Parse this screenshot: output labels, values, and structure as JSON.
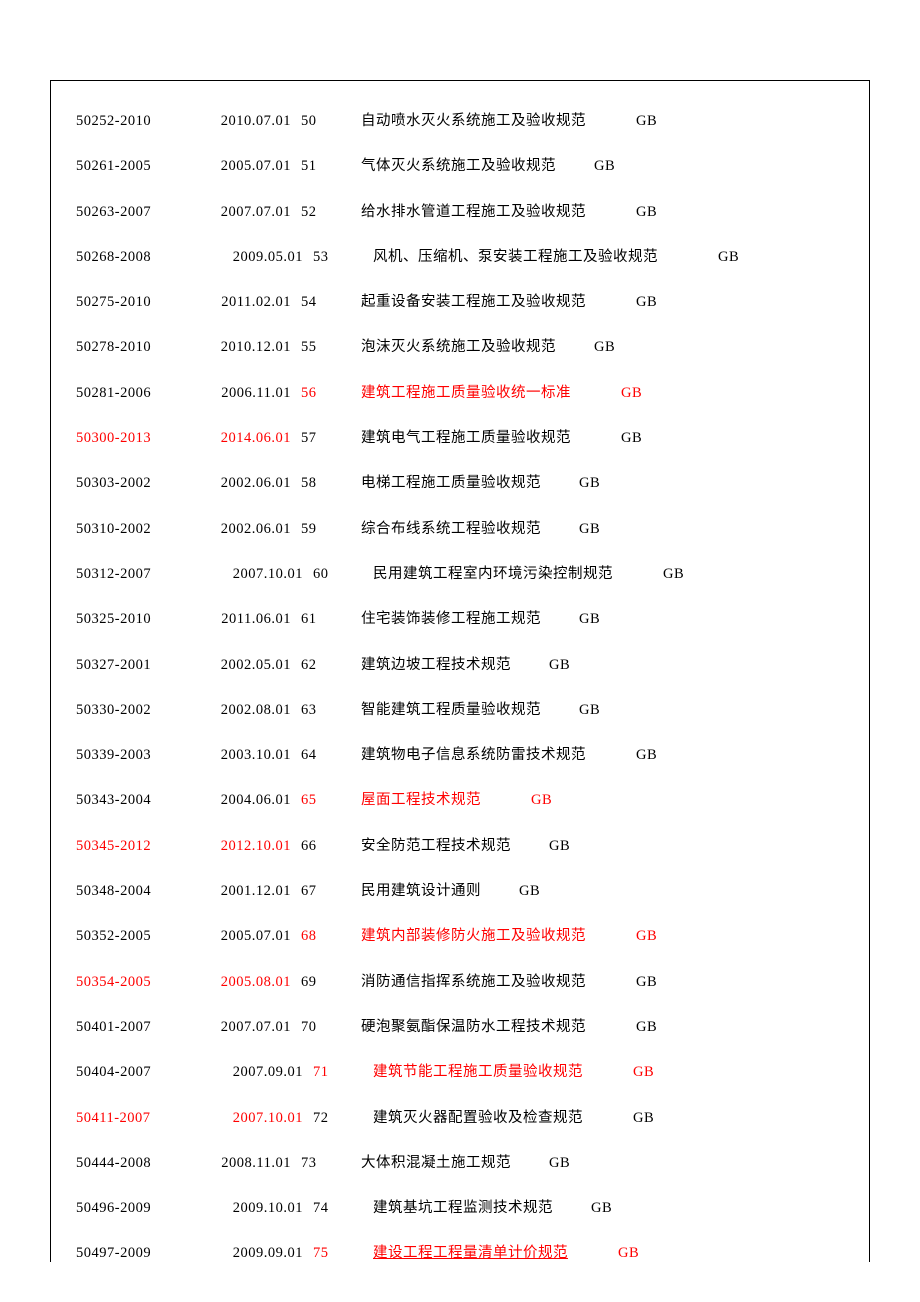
{
  "entries": [
    {
      "code": "50252-2010",
      "date": "2010.07.01",
      "seq": "50",
      "title": "自动喷水灭火系统施工及验收规范",
      "gb": "GB",
      "codeColor": "#000",
      "dateColor": "#000",
      "seqColor": "#000",
      "titleColor": "#000",
      "gbColor": "#000",
      "titleUnderline": false,
      "gbMargin": 50,
      "indentDate": false
    },
    {
      "code": "50261-2005",
      "date": "2005.07.01",
      "seq": "51",
      "title": "气体灭火系统施工及验收规范",
      "gb": "GB",
      "codeColor": "#000",
      "dateColor": "#000",
      "seqColor": "#000",
      "titleColor": "#000",
      "gbColor": "#000",
      "titleUnderline": false,
      "gbMargin": 38,
      "indentDate": false
    },
    {
      "code": "50263-2007",
      "date": "2007.07.01",
      "seq": "52",
      "title": "给水排水管道工程施工及验收规范",
      "gb": "GB",
      "codeColor": "#000",
      "dateColor": "#000",
      "seqColor": "#000",
      "titleColor": "#000",
      "gbColor": "#000",
      "titleUnderline": false,
      "gbMargin": 50,
      "indentDate": false
    },
    {
      "code": "50268-2008",
      "date": "2009.05.01",
      "seq": "53",
      "title": "风机、压缩机、泵安装工程施工及验收规范",
      "gb": "GB",
      "codeColor": "#000",
      "dateColor": "#000",
      "seqColor": "#000",
      "titleColor": "#000",
      "gbColor": "#000",
      "titleUnderline": false,
      "gbMargin": 60,
      "indentDate": true
    },
    {
      "code": "50275-2010",
      "date": "2011.02.01",
      "seq": "54",
      "title": "起重设备安装工程施工及验收规范",
      "gb": "GB",
      "codeColor": "#000",
      "dateColor": "#000",
      "seqColor": "#000",
      "titleColor": "#000",
      "gbColor": "#000",
      "titleUnderline": false,
      "gbMargin": 50,
      "indentDate": false
    },
    {
      "code": "50278-2010",
      "date": "2010.12.01",
      "seq": "55",
      "title": "泡沫灭火系统施工及验收规范",
      "gb": "GB",
      "codeColor": "#000",
      "dateColor": "#000",
      "seqColor": "#000",
      "titleColor": "#000",
      "gbColor": "#000",
      "titleUnderline": false,
      "gbMargin": 38,
      "indentDate": false
    },
    {
      "code": "50281-2006",
      "date": "2006.11.01",
      "seq": "56",
      "title": "建筑工程施工质量验收统一标准",
      "gb": "GB",
      "codeColor": "#000",
      "dateColor": "#000",
      "seqColor": "#ff0000",
      "titleColor": "#ff0000",
      "gbColor": "#ff0000",
      "titleUnderline": false,
      "gbMargin": 50,
      "indentDate": false
    },
    {
      "code": "50300-2013",
      "date": "2014.06.01",
      "seq": "57",
      "title": "建筑电气工程施工质量验收规范",
      "gb": "GB",
      "codeColor": "#ff0000",
      "dateColor": "#ff0000",
      "seqColor": "#000",
      "titleColor": "#000",
      "gbColor": "#000",
      "titleUnderline": false,
      "gbMargin": 50,
      "indentDate": false
    },
    {
      "code": "50303-2002",
      "date": "2002.06.01",
      "seq": "58",
      "title": "电梯工程施工质量验收规范",
      "gb": "GB",
      "codeColor": "#000",
      "dateColor": "#000",
      "seqColor": "#000",
      "titleColor": "#000",
      "gbColor": "#000",
      "titleUnderline": false,
      "gbMargin": 38,
      "indentDate": false
    },
    {
      "code": "50310-2002",
      "date": "2002.06.01",
      "seq": "59",
      "title": "综合布线系统工程验收规范",
      "gb": "GB",
      "codeColor": "#000",
      "dateColor": "#000",
      "seqColor": "#000",
      "titleColor": "#000",
      "gbColor": "#000",
      "titleUnderline": false,
      "gbMargin": 38,
      "indentDate": false
    },
    {
      "code": "50312-2007",
      "date": "2007.10.01",
      "seq": "60",
      "title": "民用建筑工程室内环境污染控制规范",
      "gb": "GB",
      "codeColor": "#000",
      "dateColor": "#000",
      "seqColor": "#000",
      "titleColor": "#000",
      "gbColor": "#000",
      "titleUnderline": false,
      "gbMargin": 50,
      "indentDate": true
    },
    {
      "code": "50325-2010",
      "date": "2011.06.01",
      "seq": "61",
      "title": "住宅装饰装修工程施工规范",
      "gb": "GB",
      "codeColor": "#000",
      "dateColor": "#000",
      "seqColor": "#000",
      "titleColor": "#000",
      "gbColor": "#000",
      "titleUnderline": false,
      "gbMargin": 38,
      "indentDate": false
    },
    {
      "code": "50327-2001",
      "date": "2002.05.01",
      "seq": "62",
      "title": "建筑边坡工程技术规范",
      "gb": "GB",
      "codeColor": "#000",
      "dateColor": "#000",
      "seqColor": "#000",
      "titleColor": "#000",
      "gbColor": "#000",
      "titleUnderline": false,
      "gbMargin": 38,
      "indentDate": false
    },
    {
      "code": "50330-2002",
      "date": "2002.08.01",
      "seq": "63",
      "title": "智能建筑工程质量验收规范",
      "gb": "GB",
      "codeColor": "#000",
      "dateColor": "#000",
      "seqColor": "#000",
      "titleColor": "#000",
      "gbColor": "#000",
      "titleUnderline": false,
      "gbMargin": 38,
      "indentDate": false
    },
    {
      "code": "50339-2003",
      "date": "2003.10.01",
      "seq": "64",
      "title": "建筑物电子信息系统防雷技术规范",
      "gb": "GB",
      "codeColor": "#000",
      "dateColor": "#000",
      "seqColor": "#000",
      "titleColor": "#000",
      "gbColor": "#000",
      "titleUnderline": false,
      "gbMargin": 50,
      "indentDate": false
    },
    {
      "code": "50343-2004",
      "date": "2004.06.01",
      "seq": "65",
      "title": "屋面工程技术规范",
      "gb": "GB",
      "codeColor": "#000",
      "dateColor": "#000",
      "seqColor": "#ff0000",
      "titleColor": "#ff0000",
      "gbColor": "#ff0000",
      "titleUnderline": false,
      "gbMargin": 50,
      "indentDate": false
    },
    {
      "code": "50345-2012",
      "date": "2012.10.01",
      "seq": "66",
      "title": "安全防范工程技术规范",
      "gb": "GB",
      "codeColor": "#ff0000",
      "dateColor": "#ff0000",
      "seqColor": "#000",
      "titleColor": "#000",
      "gbColor": "#000",
      "titleUnderline": false,
      "gbMargin": 38,
      "indentDate": false
    },
    {
      "code": "50348-2004",
      "date": "2001.12.01",
      "seq": "67",
      "title": "民用建筑设计通则",
      "gb": "GB",
      "codeColor": "#000",
      "dateColor": "#000",
      "seqColor": "#000",
      "titleColor": "#000",
      "gbColor": "#000",
      "titleUnderline": false,
      "gbMargin": 38,
      "indentDate": false
    },
    {
      "code": "50352-2005",
      "date": "2005.07.01",
      "seq": "68",
      "title": "建筑内部装修防火施工及验收规范",
      "gb": "GB",
      "codeColor": "#000",
      "dateColor": "#000",
      "seqColor": "#ff0000",
      "titleColor": "#ff0000",
      "gbColor": "#ff0000",
      "titleUnderline": false,
      "gbMargin": 50,
      "indentDate": false
    },
    {
      "code": "50354-2005",
      "date": "2005.08.01",
      "seq": "69",
      "title": "消防通信指挥系统施工及验收规范",
      "gb": "GB",
      "codeColor": "#ff0000",
      "dateColor": "#ff0000",
      "seqColor": "#000",
      "titleColor": "#000",
      "gbColor": "#000",
      "titleUnderline": false,
      "gbMargin": 50,
      "indentDate": false
    },
    {
      "code": "50401-2007",
      "date": "2007.07.01",
      "seq": "70",
      "title": "硬泡聚氨酯保温防水工程技术规范",
      "gb": "GB",
      "codeColor": "#000",
      "dateColor": "#000",
      "seqColor": "#000",
      "titleColor": "#000",
      "gbColor": "#000",
      "titleUnderline": false,
      "gbMargin": 50,
      "indentDate": false
    },
    {
      "code": "50404-2007",
      "date": "2007.09.01",
      "seq": "71",
      "title": "建筑节能工程施工质量验收规范",
      "gb": "GB",
      "codeColor": "#000",
      "dateColor": "#000",
      "seqColor": "#ff0000",
      "titleColor": "#ff0000",
      "gbColor": "#ff0000",
      "titleUnderline": false,
      "gbMargin": 50,
      "indentDate": true
    },
    {
      "code": "50411-2007",
      "date": "2007.10.01",
      "seq": "72",
      "title": "建筑灭火器配置验收及检查规范",
      "gb": "GB",
      "codeColor": "#ff0000",
      "dateColor": "#ff0000",
      "seqColor": "#000",
      "titleColor": "#000",
      "gbColor": "#000",
      "titleUnderline": false,
      "gbMargin": 50,
      "indentDate": true
    },
    {
      "code": "50444-2008",
      "date": "2008.11.01",
      "seq": "73",
      "title": "大体积混凝土施工规范",
      "gb": "GB",
      "codeColor": "#000",
      "dateColor": "#000",
      "seqColor": "#000",
      "titleColor": "#000",
      "gbColor": "#000",
      "titleUnderline": false,
      "gbMargin": 38,
      "indentDate": false
    },
    {
      "code": "50496-2009",
      "date": "2009.10.01",
      "seq": "74",
      "title": "建筑基坑工程监测技术规范",
      "gb": "GB",
      "codeColor": "#000",
      "dateColor": "#000",
      "seqColor": "#000",
      "titleColor": "#000",
      "gbColor": "#000",
      "titleUnderline": false,
      "gbMargin": 38,
      "indentDate": true
    },
    {
      "code": "50497-2009",
      "date": "2009.09.01",
      "seq": "75",
      "title": "建设工程工程量清单计价规范",
      "gb": "GB",
      "codeColor": "#000",
      "dateColor": "#000",
      "seqColor": "#ff0000",
      "titleColor": "#ff0000",
      "gbColor": "#ff0000",
      "titleUnderline": true,
      "gbMargin": 50,
      "indentDate": true
    }
  ],
  "colors": {
    "border": "#000000",
    "background": "#ffffff",
    "textPrimary": "#000000",
    "textHighlight": "#ff0000"
  },
  "typography": {
    "fontFamily": "SimSun, Microsoft YaHei, serif",
    "fontSize": 14.5,
    "lineHeight": 1.4,
    "rowSpacing": 25
  }
}
